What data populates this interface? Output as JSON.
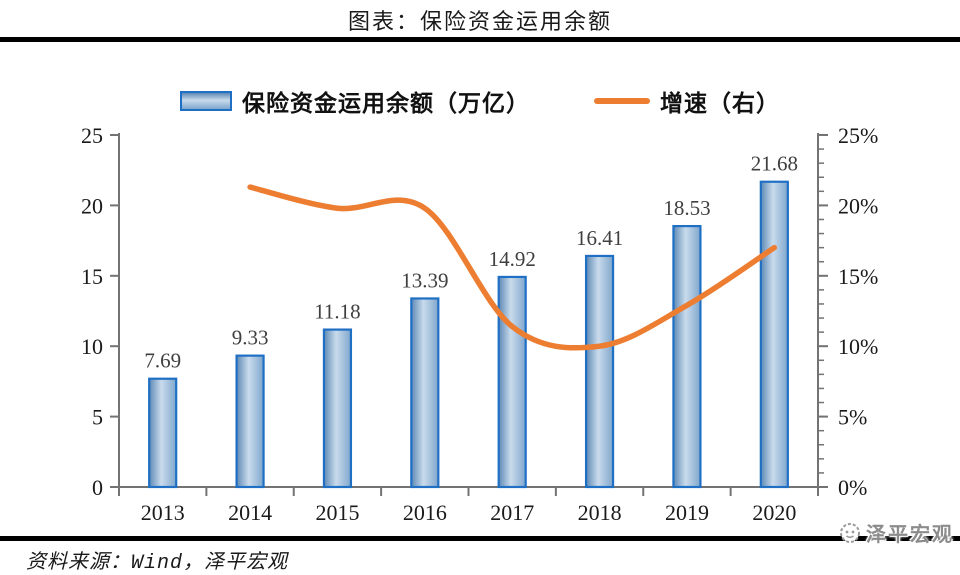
{
  "title": "图表：保险资金运用余额",
  "legend": {
    "bars_label": "保险资金运用余额（万亿）",
    "line_label": "增速（右）"
  },
  "footer": {
    "source": "资料来源：Wind，泽平宏观"
  },
  "watermark": {
    "text": "泽平宏观"
  },
  "colors": {
    "bar_border": "#1F6FC5",
    "bar_fill_edge1": "#5E89B4",
    "bar_fill_center": "#C9DBEC",
    "bar_fill_edge2": "#7FA6CC",
    "line_orange": "#ED7D31",
    "axis_gray": "#737373",
    "value_label": "#3F3F3F",
    "tick_label": "#1a1a1a"
  },
  "chart_data": {
    "type": "bar",
    "title": "图表：保险资金运用余额",
    "categories": [
      "2013",
      "2014",
      "2015",
      "2016",
      "2017",
      "2018",
      "2019",
      "2020"
    ],
    "series": [
      {
        "name": "保险资金运用余额（万亿）",
        "type": "bar",
        "axis": "left",
        "values": [
          7.69,
          9.33,
          11.18,
          13.39,
          14.92,
          16.41,
          18.53,
          21.68
        ],
        "data_labels": [
          "7.69",
          "9.33",
          "11.18",
          "13.39",
          "14.92",
          "16.41",
          "18.53",
          "21.68"
        ]
      },
      {
        "name": "增速（右）",
        "type": "line",
        "smooth": true,
        "axis": "right",
        "values": [
          null,
          21.3,
          19.8,
          19.8,
          11.4,
          10.0,
          12.9,
          17.0
        ]
      }
    ],
    "left_axis": {
      "min": 0,
      "max": 25,
      "tick_values": [
        0,
        5,
        10,
        15,
        20,
        25
      ],
      "tick_labels": [
        "0",
        "5",
        "10",
        "15",
        "20",
        "25"
      ]
    },
    "right_axis": {
      "min": 0,
      "max": 25,
      "tick_values": [
        0,
        5,
        10,
        15,
        20,
        25
      ],
      "tick_labels": [
        "0%",
        "5%",
        "10%",
        "15%",
        "20%",
        "25%"
      ],
      "minor_step": 1
    },
    "grid": false,
    "legend_position": "top"
  }
}
